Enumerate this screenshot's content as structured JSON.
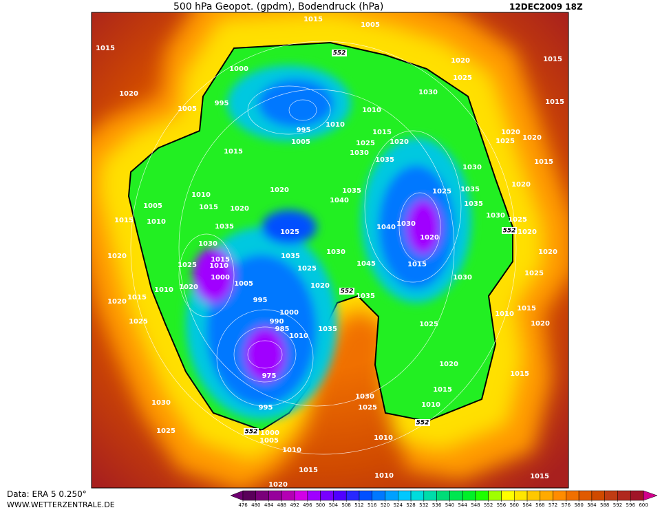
{
  "header": {
    "title": "500 hPa Geopot. (gpdm), Bodendruck (hPa)",
    "valid_time": "12DEC2009 18Z"
  },
  "map": {
    "isobar_labels": [
      1015,
      1005,
      1015,
      1020,
      1015,
      1000,
      1025,
      1020,
      995,
      1030,
      1015,
      1005,
      1010,
      995,
      1010,
      1015,
      1020,
      1025,
      1020,
      1005,
      1025,
      1020,
      1015,
      1030,
      1035,
      1015,
      1030,
      1020,
      1010,
      1020,
      1035,
      1040,
      1025,
      1035,
      1005,
      1015,
      1020,
      1035,
      1015,
      1010,
      1035,
      1030,
      1025,
      1040,
      1030,
      1025,
      1020,
      1030,
      1020,
      1020,
      1015,
      1010,
      1035,
      1030,
      1020,
      1025,
      1045,
      1015,
      1025,
      1000,
      1005,
      1025,
      1010,
      1020,
      1020,
      1030,
      995,
      1035,
      1020,
      1015,
      1015,
      1000,
      990,
      985,
      1035,
      1010,
      1020,
      1025,
      1010,
      1025,
      1020,
      975,
      1015,
      1015,
      1030,
      1030,
      1010,
      1025,
      995,
      1025,
      1000,
      1005,
      1010,
      1010,
      1015,
      1010,
      1015,
      1020
    ],
    "contour_labels": [
      552,
      552,
      552,
      552,
      552
    ]
  },
  "colorbar": {
    "levels": [
      476,
      480,
      484,
      488,
      492,
      496,
      500,
      504,
      508,
      512,
      516,
      520,
      524,
      528,
      532,
      536,
      540,
      544,
      548,
      552,
      556,
      560,
      564,
      568,
      572,
      576,
      580,
      584,
      588,
      592,
      596,
      600
    ],
    "colors": [
      "#6e0070",
      "#5a005a",
      "#7a007a",
      "#96009b",
      "#b400b4",
      "#d200e6",
      "#a000ff",
      "#7800ff",
      "#5000ff",
      "#2828ff",
      "#0050ff",
      "#0078ff",
      "#00a0ff",
      "#00c8ff",
      "#00dcdc",
      "#00dcaa",
      "#00dc78",
      "#00e650",
      "#00f028",
      "#1eff00",
      "#a0ff00",
      "#ffff00",
      "#ffe600",
      "#ffc800",
      "#ffaa00",
      "#ff8c00",
      "#f07000",
      "#e05a00",
      "#d04a00",
      "#c03c14",
      "#b0281e",
      "#a01428",
      "#d2008c"
    ]
  },
  "footer": {
    "source": "Data: ERA 5 0.250°",
    "url": "WWW.WETTERZENTRALE.DE"
  }
}
